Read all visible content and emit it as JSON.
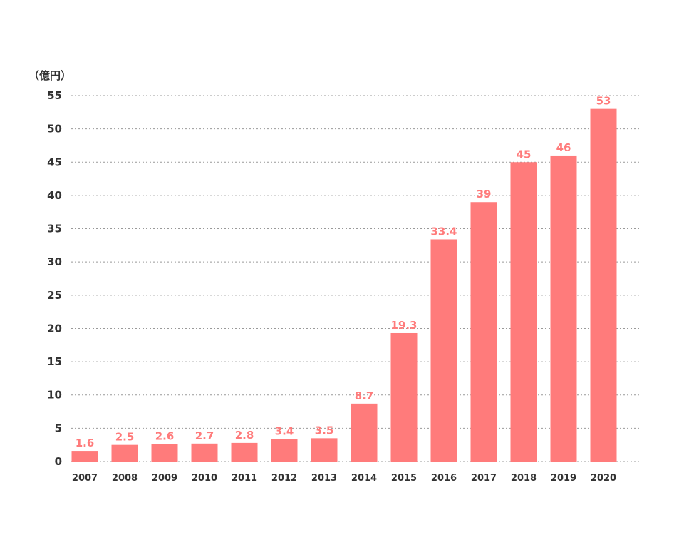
{
  "chart_data": {
    "type": "bar",
    "unit_label": "（億円）",
    "categories": [
      "2007",
      "2008",
      "2009",
      "2010",
      "2011",
      "2012",
      "2013",
      "2014",
      "2015",
      "2016",
      "2017",
      "2018",
      "2019",
      "2020"
    ],
    "values": [
      1.6,
      2.5,
      2.6,
      2.7,
      2.8,
      3.4,
      3.5,
      8.7,
      19.3,
      33.4,
      39,
      45,
      46,
      53
    ],
    "data_labels": [
      "1.6",
      "2.5",
      "2.6",
      "2.7",
      "2.8",
      "3.4",
      "3.5",
      "8.7",
      "19.3",
      "33.4",
      "39",
      "45",
      "46",
      "53"
    ],
    "ylim": [
      0,
      55
    ],
    "yticks": [
      "0",
      "5",
      "10",
      "15",
      "20",
      "25",
      "30",
      "35",
      "40",
      "45",
      "50",
      "55"
    ],
    "grid": true,
    "grid_style": "dotted",
    "bar_color": "#ff7b7b",
    "label_color": "#ff7b7b",
    "axis_text_color": "#333333"
  }
}
